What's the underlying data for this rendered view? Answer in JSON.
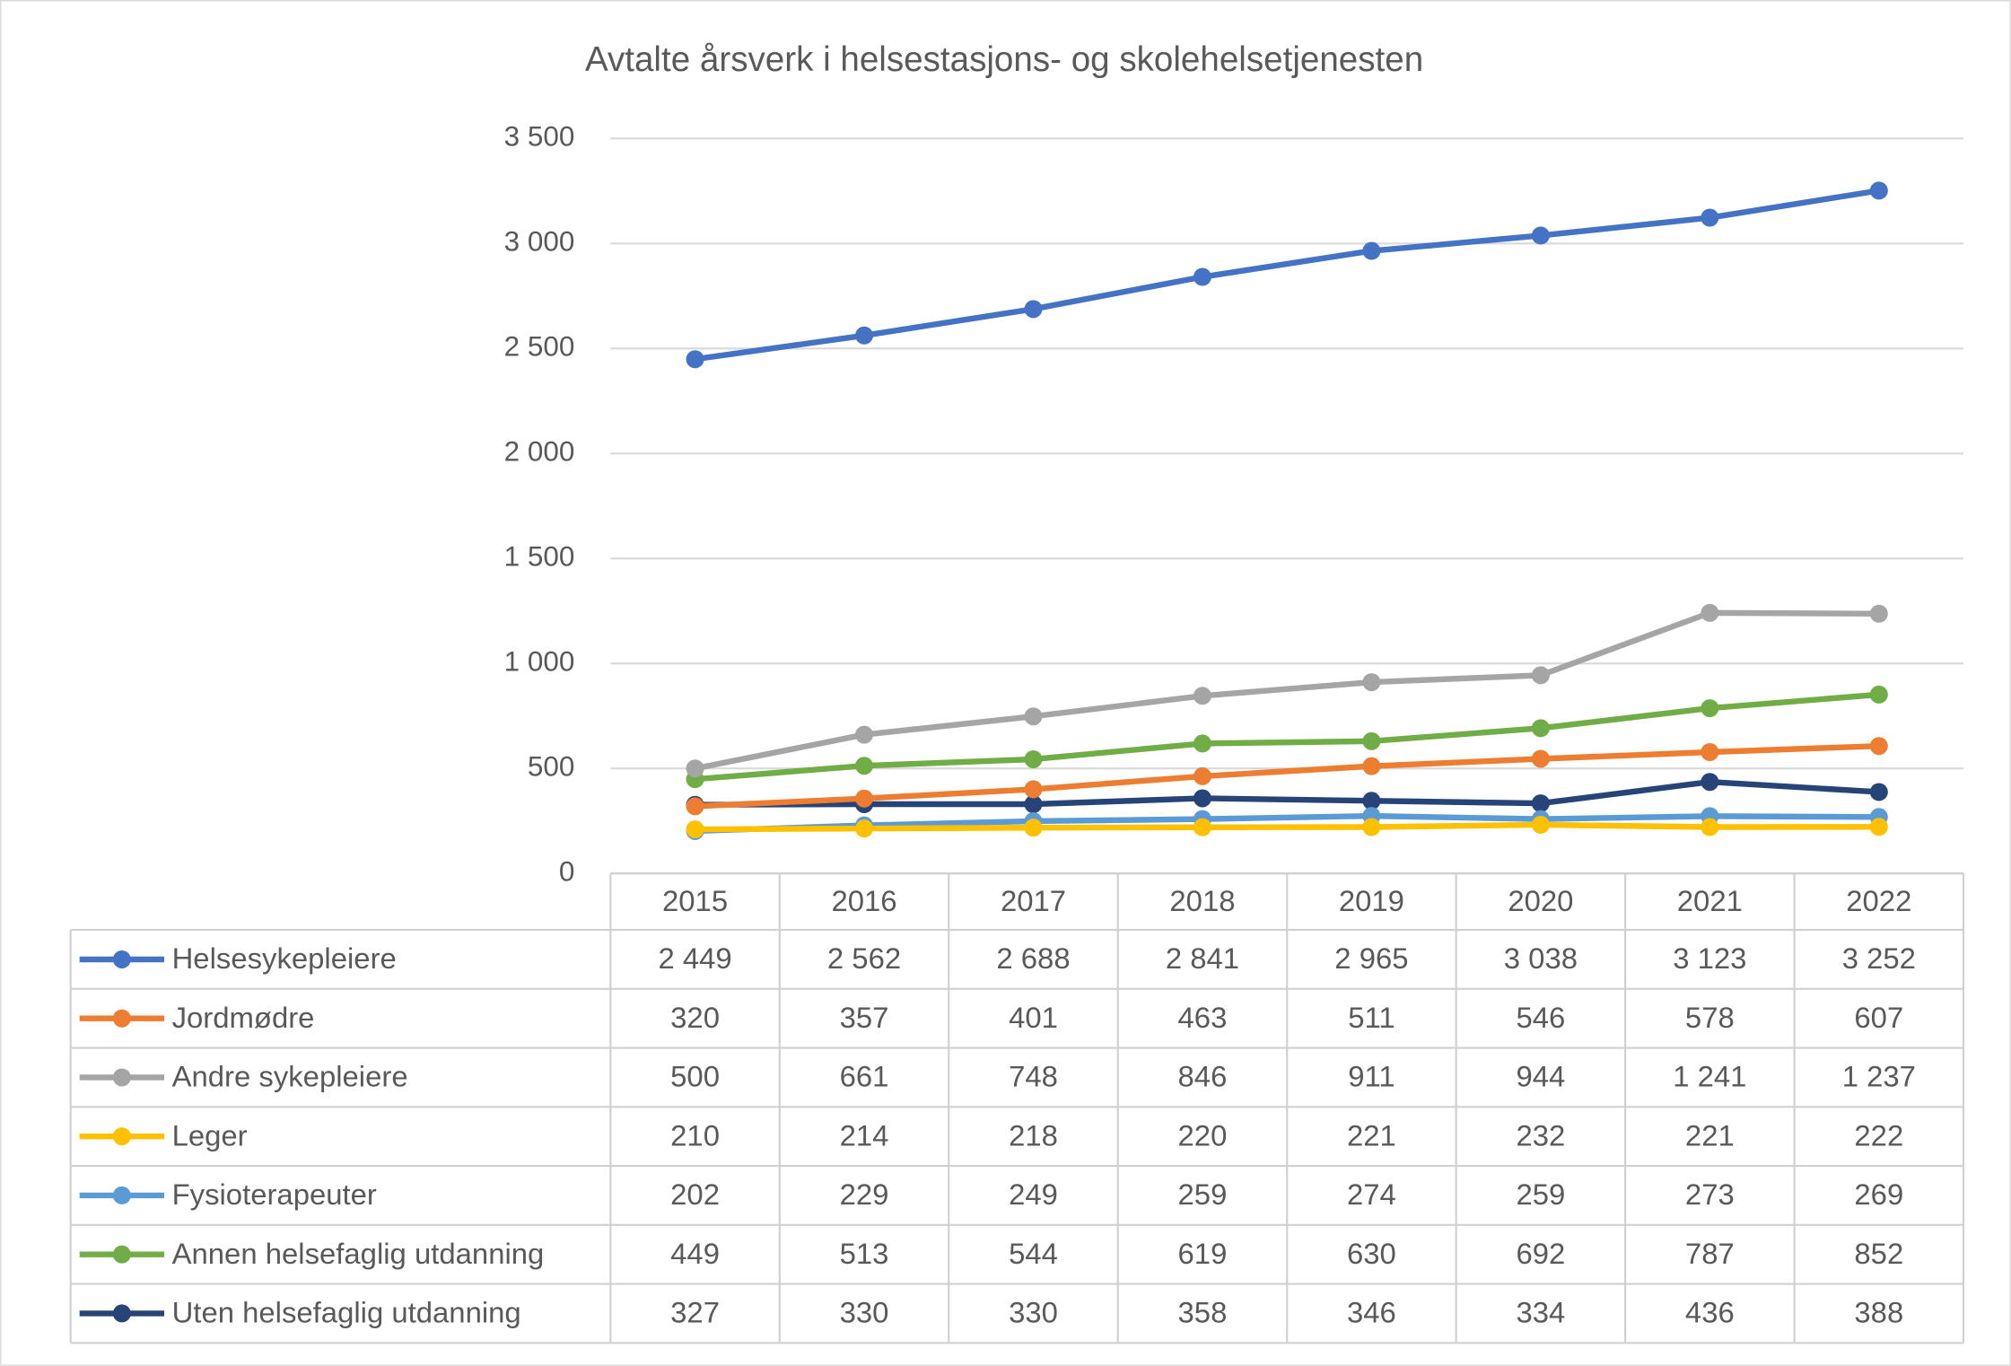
{
  "chart_data": {
    "type": "line",
    "title": "Avtalte årsverk i helsestasjons- og skolehelsetjenesten",
    "categories": [
      "2015",
      "2016",
      "2017",
      "2018",
      "2019",
      "2020",
      "2021",
      "2022"
    ],
    "ylim": [
      0,
      3500
    ],
    "yticks": [
      0,
      500,
      {
        "value": 1000,
        "label": "1 000"
      },
      {
        "value": 1500,
        "label": "1 500"
      },
      {
        "value": 2000,
        "label": "2 000"
      },
      {
        "value": 2500,
        "label": "2 500"
      },
      {
        "value": 3000,
        "label": "3 000"
      },
      {
        "value": 3500,
        "label": "3 500"
      }
    ],
    "grid": true,
    "series": [
      {
        "name": "Helsesykepleiere",
        "color": "#4472c4",
        "values": [
          2449,
          2562,
          2688,
          2841,
          2965,
          3038,
          3123,
          3252
        ],
        "value_labels": [
          "2 449",
          "2 562",
          "2 688",
          "2 841",
          "2 965",
          "3 038",
          "3 123",
          "3 252"
        ]
      },
      {
        "name": "Jordmødre",
        "color": "#ed7d31",
        "values": [
          320,
          357,
          401,
          463,
          511,
          546,
          578,
          607
        ]
      },
      {
        "name": "Andre sykepleiere",
        "color": "#a5a5a5",
        "values": [
          500,
          661,
          748,
          846,
          911,
          944,
          1241,
          1237
        ],
        "value_labels": [
          "500",
          "661",
          "748",
          "846",
          "911",
          "944",
          "1 241",
          "1 237"
        ]
      },
      {
        "name": "Leger",
        "color": "#ffc000",
        "values": [
          210,
          214,
          218,
          220,
          221,
          232,
          221,
          222
        ]
      },
      {
        "name": "Fysioterapeuter",
        "color": "#5b9bd5",
        "values": [
          202,
          229,
          249,
          259,
          274,
          259,
          273,
          269
        ]
      },
      {
        "name": "Annen helsefaglig utdanning",
        "color": "#70ad47",
        "values": [
          449,
          513,
          544,
          619,
          630,
          692,
          787,
          852
        ]
      },
      {
        "name": "Uten helsefaglig utdanning",
        "color": "#264478",
        "values": [
          327,
          330,
          330,
          358,
          346,
          334,
          436,
          388
        ]
      }
    ]
  }
}
